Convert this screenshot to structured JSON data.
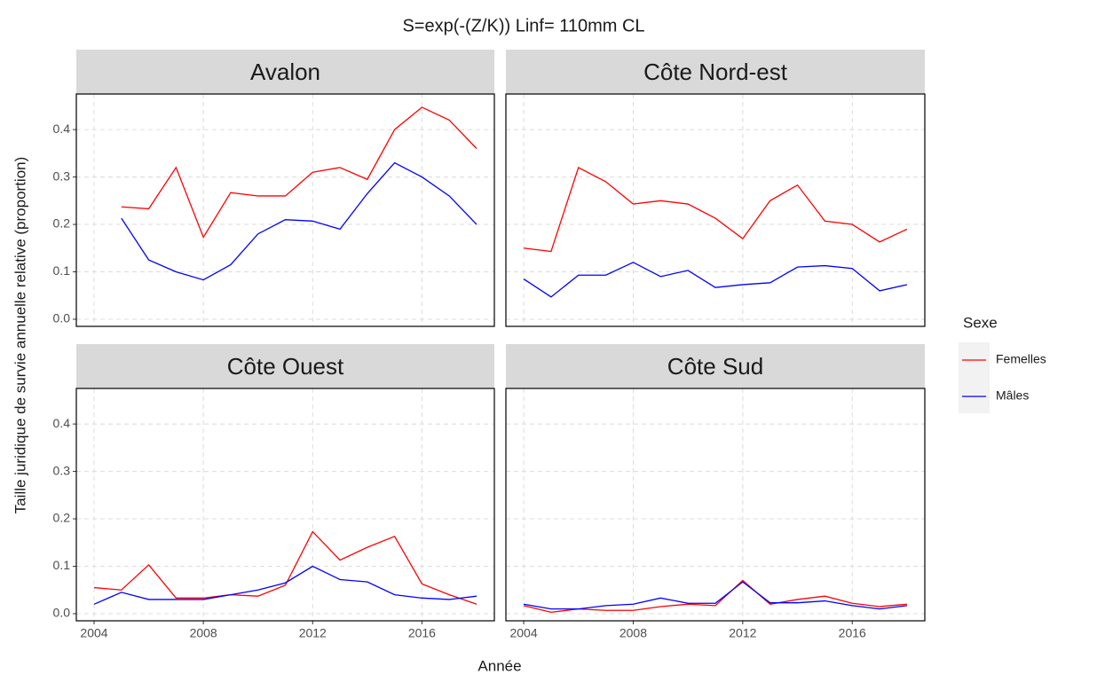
{
  "title": "S=exp(-(Z/K))  Linf= 110mm CL",
  "x_label": "Année",
  "y_label": "Taille juridique de survie annuelle relative (proportion)",
  "legend": {
    "title": "Sexe"
  },
  "chart_data": [
    {
      "type": "line",
      "title": "Avalon",
      "x": [
        2004,
        2005,
        2006,
        2007,
        2008,
        2009,
        2010,
        2011,
        2012,
        2013,
        2014,
        2015,
        2016,
        2017,
        2018
      ],
      "series": [
        {
          "name": "Femelles",
          "color": "#ff0000",
          "values": [
            null,
            0.237,
            0.233,
            0.32,
            0.173,
            0.267,
            0.26,
            0.26,
            0.31,
            0.32,
            0.295,
            0.4,
            0.447,
            0.42,
            0.36
          ]
        },
        {
          "name": "Mâles",
          "color": "#0000ff",
          "values": [
            null,
            0.213,
            0.125,
            0.1,
            0.083,
            0.115,
            0.18,
            0.21,
            0.207,
            0.19,
            0.265,
            0.33,
            0.3,
            0.26,
            0.2
          ]
        }
      ],
      "xlim": [
        2003.35,
        2018.65
      ],
      "ylim": [
        -0.015,
        0.475
      ],
      "xticks": [
        2004,
        2008,
        2012,
        2016
      ],
      "yticks": [
        {
          "value": 0,
          "label": "0.0"
        },
        {
          "value": 0.1,
          "label": "0.1"
        },
        {
          "value": 0.2,
          "label": "0.2"
        },
        {
          "value": 0.3,
          "label": "0.3"
        },
        {
          "value": 0.4,
          "label": "0.4"
        }
      ],
      "grid": true
    },
    {
      "type": "line",
      "title": "Côte Nord-est",
      "x": [
        2004,
        2005,
        2006,
        2007,
        2008,
        2009,
        2010,
        2011,
        2012,
        2013,
        2014,
        2015,
        2016,
        2017,
        2018
      ],
      "series": [
        {
          "color": "#ff0000",
          "values": [
            0.15,
            0.143,
            0.32,
            0.29,
            0.243,
            0.25,
            0.243,
            0.213,
            0.17,
            0.25,
            0.283,
            0.207,
            0.2,
            0.163,
            0.19
          ]
        },
        {
          "color": "#0000ff",
          "values": [
            0.085,
            0.047,
            0.093,
            0.093,
            0.12,
            0.09,
            0.103,
            0.067,
            0.073,
            0.077,
            0.11,
            0.113,
            0.107,
            0.06,
            0.073
          ]
        }
      ],
      "xlim": [
        2003.35,
        2018.65
      ],
      "ylim": [
        -0.015,
        0.475
      ],
      "xticks": [
        2004,
        2008,
        2012,
        2016
      ],
      "yticks": [
        {
          "value": 0,
          "label": "0.0"
        },
        {
          "value": 0.1,
          "label": "0.1"
        },
        {
          "value": 0.2,
          "label": "0.2"
        },
        {
          "value": 0.3,
          "label": "0.3"
        },
        {
          "value": 0.4,
          "label": "0.4"
        }
      ],
      "grid": true
    },
    {
      "type": "line",
      "title": "Côte Ouest",
      "x": [
        2004,
        2005,
        2006,
        2007,
        2008,
        2009,
        2010,
        2011,
        2012,
        2013,
        2014,
        2015,
        2016,
        2017,
        2018
      ],
      "series": [
        {
          "color": "#ff0000",
          "values": [
            0.055,
            0.05,
            0.103,
            0.033,
            0.033,
            0.04,
            0.037,
            0.06,
            0.173,
            0.113,
            0.14,
            0.163,
            0.063,
            0.04,
            0.02
          ]
        },
        {
          "color": "#0000ff",
          "values": [
            0.02,
            0.045,
            0.03,
            0.03,
            0.03,
            0.04,
            0.05,
            0.065,
            0.1,
            0.072,
            0.067,
            0.04,
            0.033,
            0.03,
            0.037
          ]
        }
      ],
      "xlim": [
        2003.35,
        2018.65
      ],
      "ylim": [
        -0.015,
        0.475
      ],
      "xticks": [
        2004,
        2008,
        2012,
        2016
      ],
      "yticks": [
        {
          "value": 0,
          "label": "0.0"
        },
        {
          "value": 0.1,
          "label": "0.1"
        },
        {
          "value": 0.2,
          "label": "0.2"
        },
        {
          "value": 0.3,
          "label": "0.3"
        },
        {
          "value": 0.4,
          "label": "0.4"
        }
      ],
      "grid": true
    },
    {
      "type": "line",
      "title": "Côte Sud",
      "x": [
        2004,
        2005,
        2006,
        2007,
        2008,
        2009,
        2010,
        2011,
        2012,
        2013,
        2014,
        2015,
        2016,
        2017,
        2018
      ],
      "series": [
        {
          "color": "#ff0000",
          "values": [
            0.017,
            0.003,
            0.01,
            0.007,
            0.007,
            0.015,
            0.02,
            0.017,
            0.07,
            0.02,
            0.03,
            0.037,
            0.022,
            0.015,
            0.02
          ]
        },
        {
          "color": "#0000ff",
          "values": [
            0.02,
            0.01,
            0.01,
            0.017,
            0.02,
            0.033,
            0.022,
            0.022,
            0.067,
            0.023,
            0.023,
            0.027,
            0.017,
            0.01,
            0.017
          ]
        }
      ],
      "xlim": [
        2003.35,
        2018.65
      ],
      "ylim": [
        -0.015,
        0.475
      ],
      "xticks": [
        2004,
        2008,
        2012,
        2016
      ],
      "yticks": [
        {
          "value": 0,
          "label": "0.0"
        },
        {
          "value": 0.1,
          "label": "0.1"
        },
        {
          "value": 0.2,
          "label": "0.2"
        },
        {
          "value": 0.3,
          "label": "0.3"
        },
        {
          "value": 0.4,
          "label": "0.4"
        }
      ],
      "grid": true
    }
  ]
}
